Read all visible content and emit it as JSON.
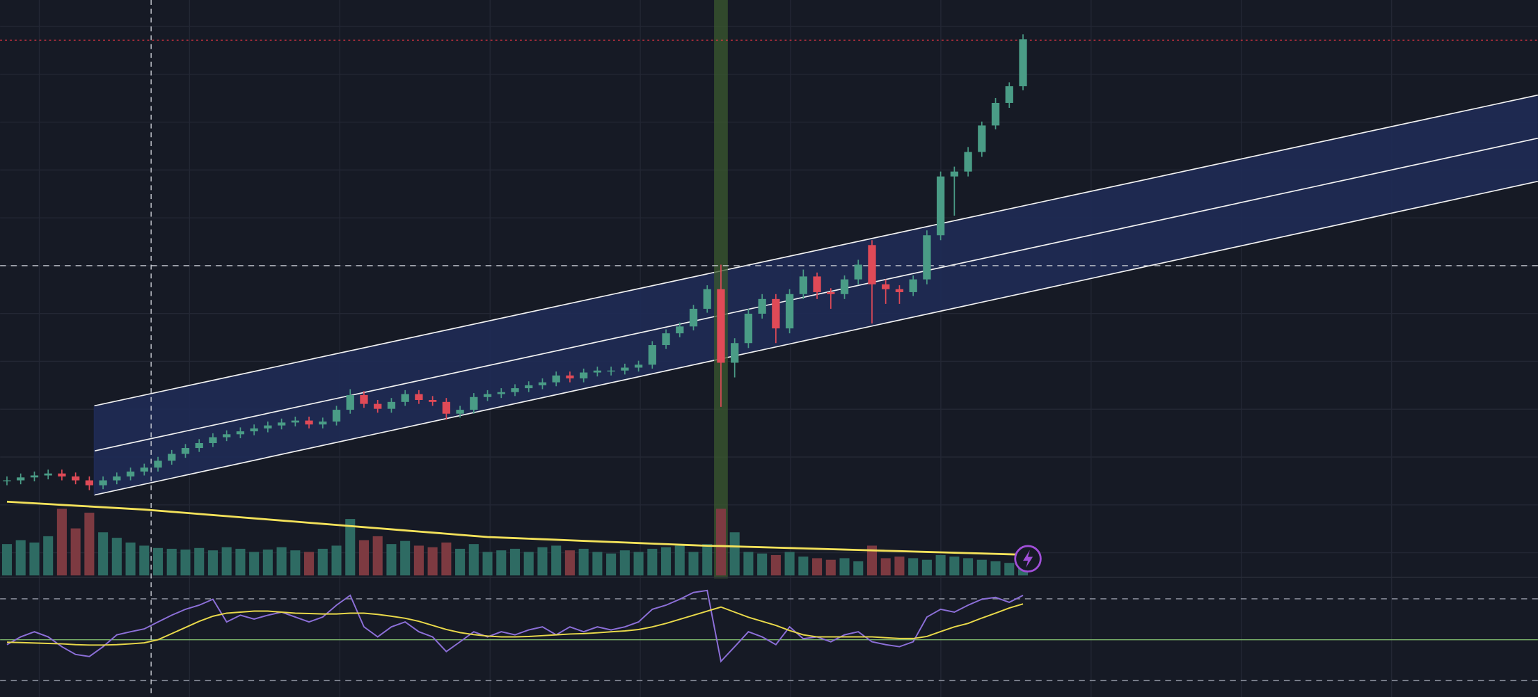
{
  "chart_data": {
    "type": "candlestick",
    "ylim": [
      0,
      100
    ],
    "up_color": "#4a9c86",
    "down_color": "#e04a57",
    "open": [
      5.8,
      6,
      6.6,
      7,
      7.4,
      6.8,
      6,
      5,
      6,
      6.8,
      7.8,
      8.6,
      10,
      11.4,
      12.6,
      13.6,
      14.8,
      15.4,
      16,
      16.6,
      17.2,
      17.8,
      18.2,
      17.4,
      18,
      20.4,
      23.4,
      21.6,
      20.6,
      22,
      23.6,
      22.4,
      22,
      19.6,
      20.4,
      23,
      23.6,
      24,
      24.8,
      25.4,
      26,
      27.4,
      26.8,
      28,
      28.2,
      28.4,
      29,
      29.6,
      33.6,
      36,
      37.4,
      41,
      45,
      30,
      34,
      40,
      43,
      37,
      44,
      47.6,
      44.4,
      44,
      47,
      54,
      46,
      45,
      44.4,
      47,
      56,
      68,
      69,
      73,
      78.4,
      83,
      86.4
    ],
    "high": [
      6.8,
      7.4,
      7.8,
      8.2,
      8.2,
      7.6,
      6.8,
      6.8,
      7.6,
      8.6,
      9.4,
      10.8,
      12.2,
      13.4,
      14.4,
      15.6,
      16.2,
      16.8,
      17.4,
      18,
      18.6,
      19,
      19,
      18.8,
      21.2,
      24.6,
      24.2,
      22.4,
      22.8,
      24.4,
      24.4,
      23.2,
      22.8,
      21.2,
      23.8,
      24.4,
      24.8,
      25.6,
      26.2,
      26.8,
      28.2,
      28.2,
      28.8,
      29.2,
      29.2,
      29.8,
      30.4,
      34.4,
      36.8,
      38.2,
      41.8,
      45.8,
      50,
      35,
      41,
      44,
      44,
      45,
      49,
      48.4,
      45.2,
      47.8,
      51,
      55,
      47,
      45.8,
      47.8,
      57,
      69,
      70,
      74,
      79.2,
      84,
      87.2,
      97
    ],
    "low": [
      5,
      5.2,
      5.8,
      6.2,
      6,
      5.2,
      4,
      4.2,
      5.2,
      6,
      7,
      7.8,
      9.2,
      10.6,
      11.8,
      12.8,
      14,
      14.6,
      15.2,
      15.8,
      16.4,
      17,
      16.6,
      16.6,
      17.2,
      19.6,
      20.8,
      19.8,
      19.8,
      21.2,
      21.6,
      21.2,
      18.4,
      18.8,
      19.6,
      22.2,
      22.8,
      23.2,
      24,
      24.6,
      25.2,
      26,
      26,
      27.2,
      27.4,
      27.6,
      28.2,
      28.8,
      32.8,
      35.2,
      36.6,
      40.2,
      21,
      27,
      33,
      39,
      34,
      36,
      43,
      43,
      41,
      43,
      46,
      38,
      42,
      42,
      43.6,
      46,
      55,
      60,
      68,
      72,
      77.6,
      82,
      85.6
    ],
    "close": [
      6,
      6.6,
      7,
      7.4,
      6.8,
      6,
      5,
      6,
      6.8,
      7.8,
      8.6,
      10,
      11.4,
      12.6,
      13.6,
      14.8,
      15.4,
      16,
      16.6,
      17.2,
      17.8,
      18.2,
      17.4,
      18,
      20.4,
      23.4,
      21.6,
      20.6,
      22,
      23.6,
      22.4,
      22,
      19.6,
      20.4,
      23,
      23.6,
      24,
      24.8,
      25.4,
      26,
      27.4,
      26.8,
      28,
      28.4,
      28.4,
      29,
      29.6,
      33.6,
      36,
      37.4,
      41,
      45,
      30,
      34,
      40,
      43,
      37,
      44,
      47.6,
      44.4,
      44,
      47,
      50,
      46,
      45,
      44.4,
      47,
      56,
      68,
      69,
      73,
      78.4,
      83,
      86.4,
      96
    ],
    "price_lines": [
      {
        "value": 49.8,
        "color": "#c9ccd4",
        "style": "dashed"
      },
      {
        "value": 95.8,
        "color": "#f23645",
        "style": "dotted"
      }
    ],
    "volume": {
      "ylim": [
        0,
        100
      ],
      "up_color": "#2e6b63",
      "down_color": "#7d3a41",
      "values": [
        40,
        45,
        42,
        50,
        85,
        60,
        80,
        55,
        48,
        42,
        38,
        35,
        34,
        33,
        35,
        32,
        36,
        34,
        30,
        33,
        36,
        32,
        30,
        34,
        38,
        72,
        45,
        50,
        40,
        44,
        38,
        36,
        42,
        34,
        40,
        30,
        32,
        34,
        30,
        36,
        38,
        32,
        34,
        30,
        28,
        32,
        30,
        34,
        36,
        38,
        30,
        40,
        85,
        55,
        30,
        28,
        26,
        30,
        24,
        22,
        20,
        22,
        18,
        38,
        22,
        24,
        22,
        20,
        26,
        24,
        22,
        20,
        18,
        16,
        20
      ],
      "ma_color": "#f4e25a",
      "ma": [
        94,
        93,
        92,
        91,
        90,
        89,
        88,
        87,
        86,
        85,
        84,
        82.6,
        81.2,
        79.8,
        78.4,
        77,
        75.6,
        74.2,
        72.8,
        71.4,
        70,
        68.6,
        67.2,
        65.8,
        64.4,
        63,
        61.6,
        60.2,
        58.8,
        57.4,
        56,
        54.6,
        53.2,
        51.8,
        50.4,
        49,
        48.3,
        47.6,
        46.9,
        46.2,
        45.5,
        44.8,
        44.1,
        43.4,
        42.7,
        42,
        41.3,
        40.6,
        39.9,
        39.2,
        38.5,
        37.8,
        37.5,
        37,
        36.5,
        36,
        35.5,
        35,
        34.5,
        34,
        33.5,
        33,
        32.5,
        32,
        31.5,
        31,
        30.5,
        30,
        29.5,
        29,
        28.5,
        28,
        27.5,
        27,
        26.5
      ]
    },
    "rsi": {
      "ylim": [
        22,
        80
      ],
      "color": "#8c6fd8",
      "values": [
        47.6,
        51.4,
        53.9,
        51.4,
        46.6,
        42.8,
        41.8,
        46.6,
        52.4,
        53.9,
        55.3,
        58.7,
        62,
        64.9,
        66.9,
        69.8,
        58.7,
        62,
        60.1,
        62,
        63.5,
        61.1,
        58.7,
        61.1,
        66.9,
        71.7,
        56.3,
        51.4,
        56.3,
        58.7,
        53.9,
        51.4,
        44.2,
        49,
        53.9,
        51.4,
        53.9,
        52.4,
        54.8,
        56.3,
        52.4,
        56.3,
        53.9,
        56.3,
        54.8,
        56.3,
        58.7,
        64.9,
        66.9,
        69.8,
        73.1,
        74.1,
        39.4,
        46.6,
        53.9,
        51.4,
        47.6,
        56.3,
        50.5,
        51.4,
        49,
        52.4,
        53.9,
        49,
        47.6,
        46.6,
        49,
        61.1,
        64.9,
        63.5,
        66.9,
        69.8,
        70.7,
        68.3,
        71.7
      ],
      "ma_color": "#e9d94a",
      "ma": [
        48.8,
        48.6,
        48.4,
        48.2,
        48,
        47.6,
        47.4,
        47.4,
        47.6,
        48,
        48.5,
        50,
        53,
        56,
        59,
        61.5,
        63,
        63.5,
        64,
        64,
        63.5,
        63,
        62.8,
        62.6,
        62.6,
        63,
        63,
        62.4,
        61.5,
        60.5,
        59,
        57,
        55,
        53.5,
        52.5,
        51.8,
        51.4,
        51.4,
        51.6,
        52,
        52.4,
        52.8,
        53,
        53.4,
        53.9,
        54.3,
        55,
        56.3,
        58,
        60,
        62,
        64,
        66,
        63.5,
        61,
        59,
        57,
        54.5,
        52.4,
        51.4,
        51.4,
        51.4,
        51.4,
        51.4,
        51,
        50.6,
        50.6,
        51.6,
        54,
        56.3,
        58,
        60.6,
        63,
        65.5,
        67.5
      ],
      "levels": [
        {
          "value": 70,
          "color": "#8a8f9c",
          "style": "dashed"
        },
        {
          "value": 50,
          "color": "#7bb36a",
          "style": "solid"
        },
        {
          "value": 30,
          "color": "#8a8f9c",
          "style": "dashed"
        }
      ]
    }
  }
}
